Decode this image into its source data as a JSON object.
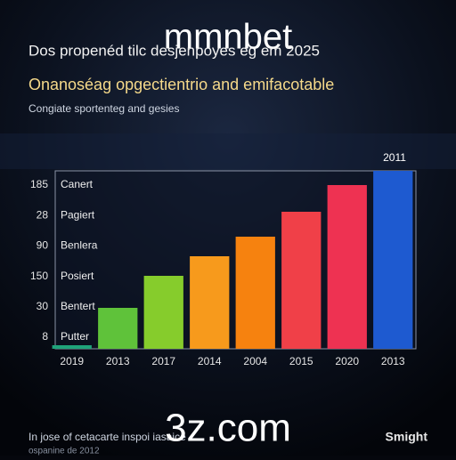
{
  "chart_data": {
    "type": "bar",
    "watermark_top": "mmnbet",
    "watermark_bottom": "3z.com",
    "title": "Dos propenéd tilc desjenpoyes eg em 2025",
    "subtitle": "Onanoséag opgectientrio and emifacotable",
    "caption": "Congiate sportenteg and gesies",
    "categories": [
      "2019",
      "2013",
      "2017",
      "2014",
      "2004",
      "2015",
      "2020",
      "2013"
    ],
    "values": [
      2,
      23,
      41,
      52,
      63,
      77,
      92,
      100
    ],
    "colors": [
      "#1fa37a",
      "#5fc23a",
      "#86cc2c",
      "#f79a1c",
      "#f6820f",
      "#f04048",
      "#ee3252",
      "#1e5ad0"
    ],
    "ylim": [
      0,
      100
    ],
    "row_labels": [
      "185",
      "28",
      "90",
      "150",
      "30",
      "8"
    ],
    "row_names": [
      "Canert",
      "Pagiert",
      "Benlera",
      "Posiert",
      "Bentert",
      "Putter"
    ],
    "top_label": "2011",
    "footer": "In jose of cetacarte inspoi iasaice",
    "footer_sub": "ospanine de 2012",
    "brand": "Smight"
  }
}
